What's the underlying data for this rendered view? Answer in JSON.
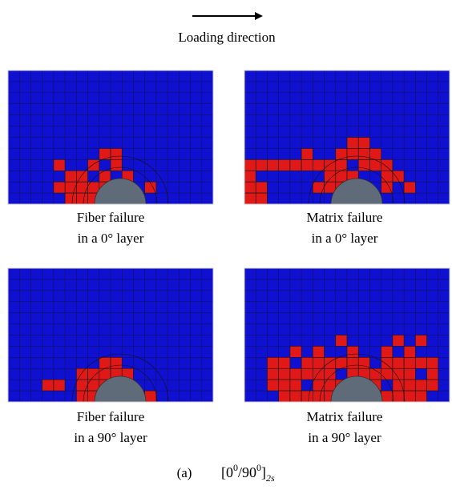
{
  "header": {
    "label": "Loading direction"
  },
  "panels": [
    {
      "line1": "Fiber failure",
      "line2": "in a 0° layer"
    },
    {
      "line1": "Matrix failure",
      "line2": "in a 0° layer"
    },
    {
      "line1": "Fiber failure",
      "line2": "in a 90° layer"
    },
    {
      "line1": "Matrix failure",
      "line2": "in a 90° layer"
    }
  ],
  "caption": {
    "label": "(a)",
    "layup": {
      "open": "[0",
      "exp1": "0",
      "sep": "/90",
      "exp2": "0",
      "close": "]",
      "sub": "2s"
    }
  }
}
